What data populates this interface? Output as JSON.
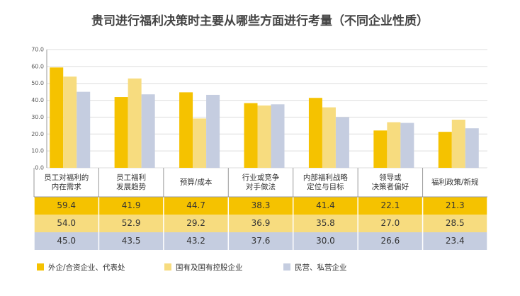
{
  "chart_data": {
    "type": "bar",
    "title": "贵司进行福利决策时主要从哪些方面进行考量（不同企业性质）",
    "categories": [
      [
        "员工对福利的",
        "内在需求"
      ],
      [
        "员工福利",
        "发展趋势"
      ],
      [
        "预算/成本"
      ],
      [
        "行业或竞争",
        "对手做法"
      ],
      [
        "内部福利战略",
        "定位与目标"
      ],
      [
        "领导或",
        "决策者偏好"
      ],
      [
        "福利政策/新规"
      ]
    ],
    "series": [
      {
        "name": "外企/合资企业、代表处",
        "color": "#f5c200",
        "values": [
          59.4,
          41.9,
          44.7,
          38.3,
          41.4,
          22.1,
          21.3
        ],
        "value_labels": [
          "59.4",
          "41.9",
          "44.7",
          "38.3",
          "41.4",
          "22.1",
          "21.3"
        ]
      },
      {
        "name": "国有及国有控股企业",
        "color": "#f7dc7f",
        "values": [
          54.0,
          52.9,
          29.2,
          36.9,
          35.8,
          27.0,
          28.5
        ],
        "value_labels": [
          "54.0",
          "52.9",
          "29.2",
          "36.9",
          "35.8",
          "27.0",
          "28.5"
        ]
      },
      {
        "name": "民营、私营企业",
        "color": "#c5cde0",
        "values": [
          45.0,
          43.5,
          43.2,
          37.6,
          30.0,
          26.6,
          23.4
        ],
        "value_labels": [
          "45.0",
          "43.5",
          "43.2",
          "37.6",
          "30.0",
          "26.6",
          "23.4"
        ]
      }
    ],
    "ylim": [
      0,
      70
    ],
    "yticks": [
      {
        "value": 0,
        "label": "0.0"
      },
      {
        "value": 10,
        "label": "10.0"
      },
      {
        "value": 20,
        "label": "20.0"
      },
      {
        "value": 30,
        "label": "30.0"
      },
      {
        "value": 40,
        "label": "40.0"
      },
      {
        "value": 50,
        "label": "50.0"
      },
      {
        "value": 60,
        "label": "60.0"
      },
      {
        "value": 70,
        "label": "70.0"
      }
    ],
    "grid": true
  }
}
